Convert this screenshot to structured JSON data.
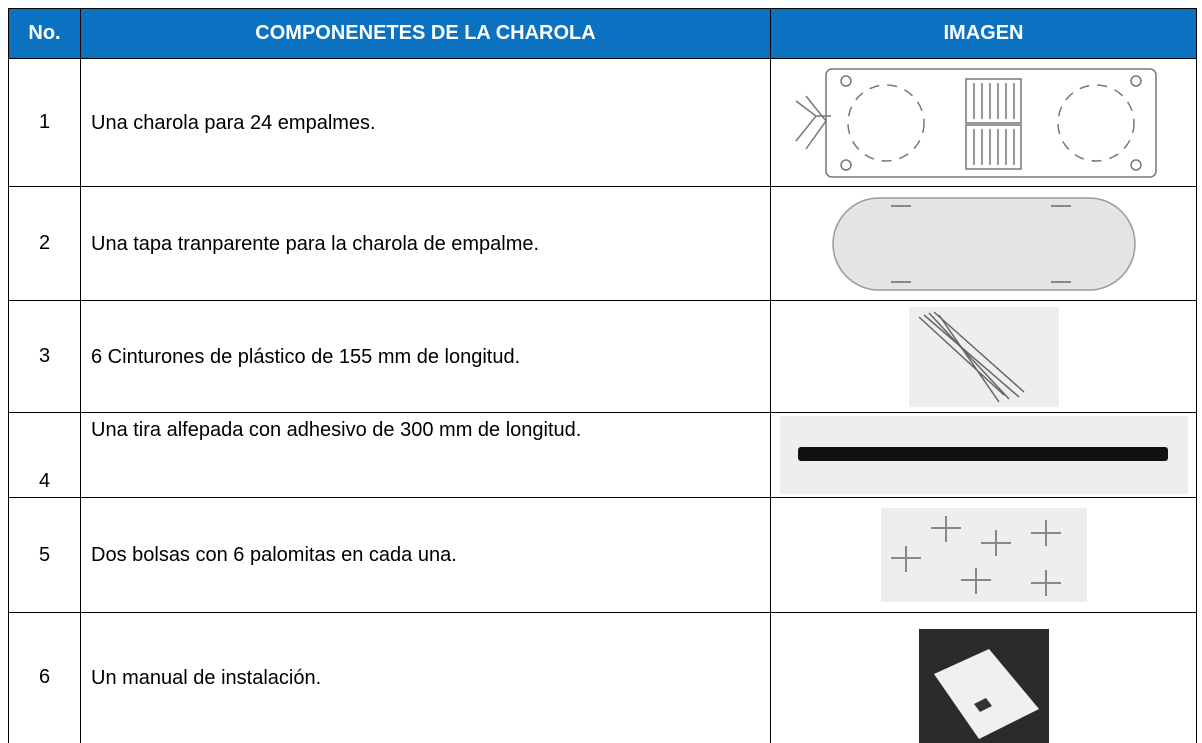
{
  "table": {
    "header": [
      "No.",
      "COMPONENETES DE LA CHAROLA",
      "IMAGEN"
    ],
    "rows": [
      [
        "1",
        "Una charola para 24 empalmes."
      ],
      [
        "2",
        "Una tapa tranparente para la charola de empalme."
      ],
      [
        "3",
        "6 Cinturones de plástico de 155 mm de longitud."
      ],
      [
        "4",
        "Una tira alfepada con adhesivo de 300 mm de longitud."
      ],
      [
        "5",
        "Dos bolsas con 6 palomitas en cada una."
      ],
      [
        "6",
        "Un manual de instalación."
      ]
    ]
  }
}
